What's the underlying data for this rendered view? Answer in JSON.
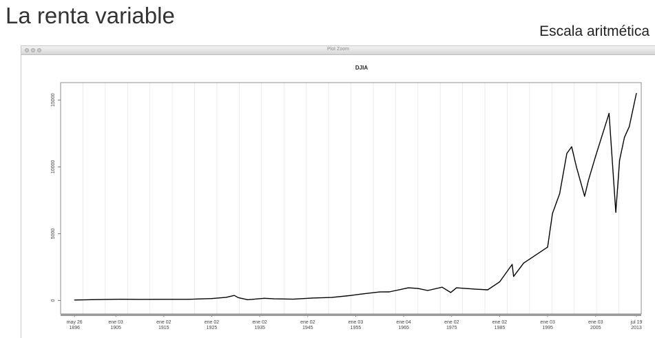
{
  "slide": {
    "title": "La renta variable",
    "subtitle": "Escala aritmética"
  },
  "window": {
    "title": "Plot Zoom"
  },
  "chart_data": {
    "type": "line",
    "title": "DJIA",
    "xlabel": "",
    "ylabel": "",
    "ylim": [
      0,
      16000
    ],
    "yticks": [
      0,
      5000,
      10000,
      15000
    ],
    "xticks": [
      {
        "top": "may 26",
        "bottom": "1896",
        "year": 1896.4
      },
      {
        "top": "ene 03",
        "bottom": "1905",
        "year": 1905.0
      },
      {
        "top": "ene 02",
        "bottom": "1915",
        "year": 1915.0
      },
      {
        "top": "ene 02",
        "bottom": "1925",
        "year": 1925.0
      },
      {
        "top": "ene 02",
        "bottom": "1935",
        "year": 1935.0
      },
      {
        "top": "ene 02",
        "bottom": "1945",
        "year": 1945.0
      },
      {
        "top": "ene 03",
        "bottom": "1955",
        "year": 1955.0
      },
      {
        "top": "ene 04",
        "bottom": "1965",
        "year": 1965.0
      },
      {
        "top": "ene 02",
        "bottom": "1975",
        "year": 1975.0
      },
      {
        "top": "ene 02",
        "bottom": "1985",
        "year": 1985.0
      },
      {
        "top": "ene 03",
        "bottom": "1995",
        "year": 1995.0
      },
      {
        "top": "ene 03",
        "bottom": "2005",
        "year": 2005.0
      },
      {
        "top": "jul 19",
        "bottom": "2013",
        "year": 2013.5
      }
    ],
    "grid": true,
    "series": [
      {
        "x": [
          1896.4,
          1900,
          1906,
          1910,
          1915,
          1920,
          1925,
          1928,
          1929.7,
          1930.5,
          1932.5,
          1936,
          1938,
          1942,
          1946,
          1950,
          1954,
          1956,
          1960,
          1962,
          1966,
          1968,
          1970,
          1973,
          1974.8,
          1976,
          1980,
          1982.5,
          1985,
          1987.6,
          1987.9,
          1990,
          1995,
          1996,
          1997.5,
          1999,
          2000,
          2001,
          2002.7,
          2003.5,
          2005,
          2007.8,
          2009.2,
          2010,
          2011,
          2012,
          2013.5
        ],
        "y": [
          40,
          65,
          95,
          85,
          90,
          90,
          150,
          240,
          380,
          220,
          60,
          170,
          130,
          100,
          190,
          230,
          380,
          480,
          640,
          650,
          950,
          900,
          750,
          1000,
          600,
          950,
          850,
          800,
          1400,
          2700,
          1800,
          2800,
          4000,
          6500,
          8000,
          11000,
          11500,
          10000,
          7800,
          9000,
          10800,
          14000,
          6600,
          10500,
          12200,
          13000,
          15500
        ]
      }
    ],
    "colors": {
      "line": "#000000",
      "grid": "#e6e6e6",
      "axis": "#777777",
      "footer_bar": "#9a9a9a"
    }
  }
}
